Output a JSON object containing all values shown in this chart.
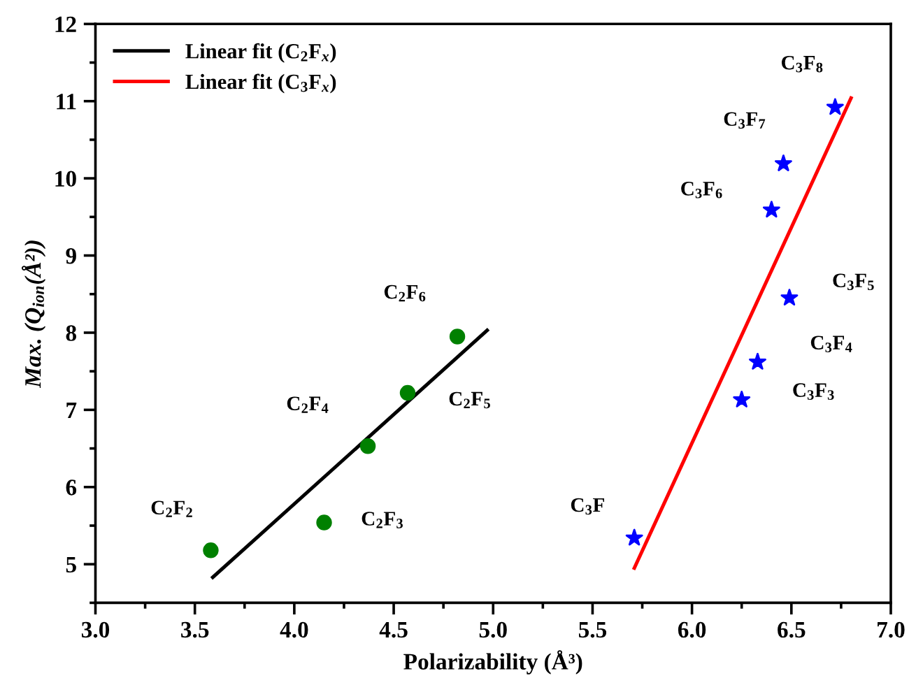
{
  "chart_data": {
    "type": "scatter",
    "xlabel": "Polarizability (Å³)",
    "ylabel": "Max. (Q$_{ion}$(Å²))",
    "xlim": [
      3.0,
      7.0
    ],
    "ylim": [
      4.5,
      12
    ],
    "xticks": [
      {
        "value": 3.0,
        "label": "3.0"
      },
      {
        "value": 3.5,
        "label": "3.5"
      },
      {
        "value": 4.0,
        "label": "4.0"
      },
      {
        "value": 4.5,
        "label": "4.5"
      },
      {
        "value": 5.0,
        "label": "5.0"
      },
      {
        "value": 5.5,
        "label": "5.5"
      },
      {
        "value": 6.0,
        "label": "6.0"
      },
      {
        "value": 6.5,
        "label": "6.5"
      },
      {
        "value": 7.0,
        "label": "7.0"
      }
    ],
    "yticks": [
      5,
      6,
      7,
      8,
      9,
      10,
      11,
      12
    ],
    "grid": false,
    "legend": "top left",
    "series": [
      {
        "marker": "circle",
        "color": "#008000",
        "x": [
          3.58,
          4.15,
          4.37,
          4.57,
          4.82
        ],
        "values": [
          5.18,
          5.54,
          6.53,
          7.22,
          7.95
        ]
      },
      {
        "marker": "star",
        "color": "#0000ff",
        "x": [
          5.71,
          6.25,
          6.33,
          6.49,
          6.4,
          6.46,
          6.72
        ],
        "values": [
          5.34,
          7.13,
          7.62,
          8.45,
          9.59,
          10.19,
          10.92
        ]
      },
      {
        "type": "line",
        "name": "Linear fit (C$_{2}$F$_{x}$)",
        "color": "#000000",
        "line_style": "solid",
        "x": [
          3.59,
          4.97
        ],
        "values": [
          4.83,
          8.03
        ]
      },
      {
        "type": "line",
        "name": "Linear fit (C$_{3}$F$_{x}$)",
        "color": "#ff0000",
        "line_style": "solid",
        "x": [
          5.71,
          6.8
        ],
        "values": [
          4.95,
          11.04
        ]
      }
    ],
    "annotations": [
      {
        "text": "C$_{2}$F$_{2}$",
        "x": 3.58,
        "y": 5.18
      },
      {
        "text": "C$_{2}$F$_{3}$",
        "x": 4.15,
        "y": 5.54
      },
      {
        "text": "C$_{2}$F$_{4}$",
        "x": 4.37,
        "y": 6.53
      },
      {
        "text": "C$_{2}$F$_{5}$",
        "x": 4.57,
        "y": 7.22
      },
      {
        "text": "C$_{2}$F$_{6}$",
        "x": 4.82,
        "y": 7.95
      },
      {
        "text": "C$_{3}$F",
        "x": 5.71,
        "y": 5.34
      },
      {
        "text": "C$_{3}$F$_{3}$",
        "x": 6.25,
        "y": 7.13
      },
      {
        "text": "C$_{3}$F$_{4}$",
        "x": 6.33,
        "y": 7.62
      },
      {
        "text": "C$_{3}$F$_{5}$",
        "x": 6.49,
        "y": 8.45
      },
      {
        "text": "C$_{3}$F$_{6}$",
        "x": 6.4,
        "y": 9.59
      },
      {
        "text": "C$_{3}$F$_{7}$",
        "x": 6.46,
        "y": 10.19
      },
      {
        "text": "C$_{3}$F$_{8}$",
        "x": 6.72,
        "y": 10.92
      }
    ]
  }
}
